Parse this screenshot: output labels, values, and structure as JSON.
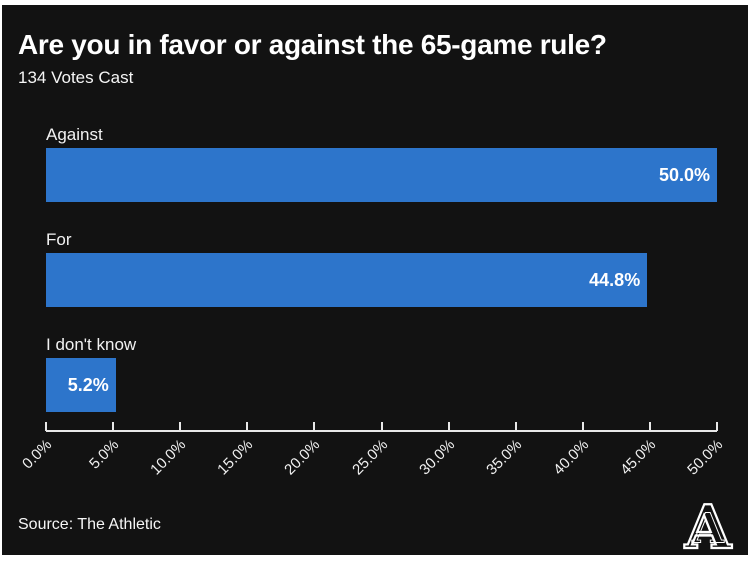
{
  "title": "Are you in favor or against the 65-game rule?",
  "subtitle": "134 Votes Cast",
  "source": "Source: The Athletic",
  "logo_letter": "A",
  "colors": {
    "background": "#121212",
    "border": "#ffffff",
    "bar": "#2d75cb",
    "text": "#ffffff",
    "axis": "#e8e8e8"
  },
  "chart_data": {
    "type": "bar",
    "orientation": "horizontal",
    "title": "Are you in favor or against the 65-game rule?",
    "subtitle": "134 Votes Cast",
    "categories": [
      "Against",
      "For",
      "I don't know"
    ],
    "values": [
      50.0,
      44.8,
      5.2
    ],
    "value_labels": [
      "50.0%",
      "44.8%",
      "5.2%"
    ],
    "xlabel": "",
    "ylabel": "",
    "xlim": [
      0,
      50
    ],
    "x_ticks": [
      "0.0%",
      "5.0%",
      "10.0%",
      "15.0%",
      "20.0%",
      "25.0%",
      "30.0%",
      "35.0%",
      "40.0%",
      "45.0%",
      "50.0%"
    ],
    "grid": false,
    "legend": false,
    "bar_color": "#2d75cb",
    "background": "#121212"
  }
}
